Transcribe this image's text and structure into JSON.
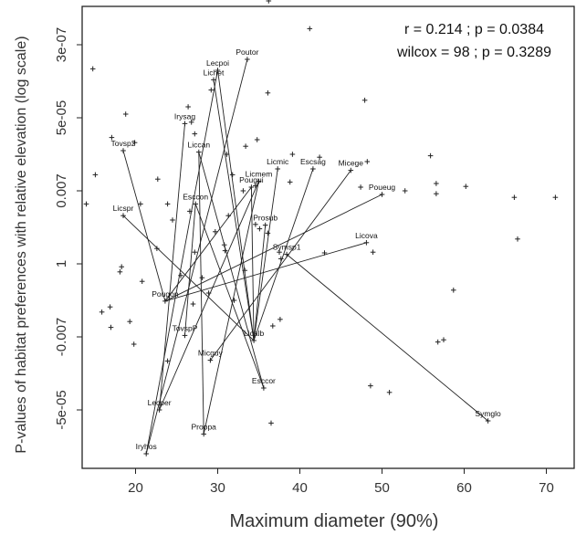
{
  "chart_data": {
    "type": "scatter",
    "xlabel": "Maximum diameter (90%)",
    "ylabel": "P-values of habitat preferences with relative elevation (log scale)",
    "xlim": [
      13.5,
      72
    ],
    "x_ticks": [
      20,
      30,
      40,
      50,
      60,
      70
    ],
    "y_ticks": [
      "3e-07",
      "5e-05",
      "0.007",
      "1",
      "-0.007",
      "-5e-05"
    ],
    "annotations": [
      "r = 0.214 ; p = 0.0384",
      "wilcox = 98 ; p = 0.3289"
    ],
    "points": [
      {
        "x": 36.2,
        "y": 3.6
      },
      {
        "x": 41.2,
        "y": 3.22
      },
      {
        "x": 14.8,
        "y": 2.67
      },
      {
        "x": 29.2,
        "y": 2.38
      },
      {
        "x": 26.4,
        "y": 2.15
      },
      {
        "x": 36.1,
        "y": 2.34
      },
      {
        "x": 47.9,
        "y": 2.24
      },
      {
        "x": 18.8,
        "y": 2.05
      },
      {
        "x": 26.8,
        "y": 1.94
      },
      {
        "x": 27.2,
        "y": 1.78
      },
      {
        "x": 17.1,
        "y": 1.73
      },
      {
        "x": 19.9,
        "y": 1.66
      },
      {
        "x": 34.8,
        "y": 1.7
      },
      {
        "x": 31.1,
        "y": 1.5
      },
      {
        "x": 33.4,
        "y": 1.61
      },
      {
        "x": 39.1,
        "y": 1.5
      },
      {
        "x": 42.4,
        "y": 1.46
      },
      {
        "x": 48.2,
        "y": 1.4
      },
      {
        "x": 55.9,
        "y": 1.48
      },
      {
        "x": 15.1,
        "y": 1.22
      },
      {
        "x": 22.7,
        "y": 1.16
      },
      {
        "x": 31.8,
        "y": 1.22
      },
      {
        "x": 33.1,
        "y": 1.0
      },
      {
        "x": 34.6,
        "y": 1.07
      },
      {
        "x": 38.8,
        "y": 1.12
      },
      {
        "x": 56.6,
        "y": 1.1
      },
      {
        "x": 60.2,
        "y": 1.06
      },
      {
        "x": 47.4,
        "y": 1.05
      },
      {
        "x": 52.8,
        "y": 1.0
      },
      {
        "x": 56.6,
        "y": 0.96
      },
      {
        "x": 66.1,
        "y": 0.91
      },
      {
        "x": 71.1,
        "y": 0.91
      },
      {
        "x": 14.0,
        "y": 0.82
      },
      {
        "x": 20.6,
        "y": 0.82
      },
      {
        "x": 23.9,
        "y": 0.82
      },
      {
        "x": 26.6,
        "y": 0.72
      },
      {
        "x": 31.3,
        "y": 0.66
      },
      {
        "x": 24.5,
        "y": 0.6
      },
      {
        "x": 34.6,
        "y": 0.54
      },
      {
        "x": 35.1,
        "y": 0.48
      },
      {
        "x": 29.7,
        "y": 0.44
      },
      {
        "x": 36.1,
        "y": 0.42
      },
      {
        "x": 30.8,
        "y": 0.26
      },
      {
        "x": 66.5,
        "y": 0.34
      },
      {
        "x": 22.6,
        "y": 0.21
      },
      {
        "x": 27.2,
        "y": 0.16
      },
      {
        "x": 30.9,
        "y": 0.18
      },
      {
        "x": 37.5,
        "y": 0.16
      },
      {
        "x": 43.0,
        "y": 0.15
      },
      {
        "x": 48.9,
        "y": 0.16
      },
      {
        "x": 37.7,
        "y": 0.07
      },
      {
        "x": 18.3,
        "y": -0.04
      },
      {
        "x": 18.1,
        "y": -0.11
      },
      {
        "x": 33.3,
        "y": -0.09
      },
      {
        "x": 25.5,
        "y": -0.16
      },
      {
        "x": 28.1,
        "y": -0.19
      },
      {
        "x": 20.8,
        "y": -0.24
      },
      {
        "x": 28.9,
        "y": -0.4
      },
      {
        "x": 58.7,
        "y": -0.36
      },
      {
        "x": 27.0,
        "y": -0.55
      },
      {
        "x": 32.0,
        "y": -0.5
      },
      {
        "x": 15.9,
        "y": -0.66
      },
      {
        "x": 16.9,
        "y": -0.59
      },
      {
        "x": 19.3,
        "y": -0.79
      },
      {
        "x": 17.0,
        "y": -0.87
      },
      {
        "x": 37.6,
        "y": -0.76
      },
      {
        "x": 36.7,
        "y": -0.85
      },
      {
        "x": 19.8,
        "y": -1.1
      },
      {
        "x": 56.8,
        "y": -1.07
      },
      {
        "x": 57.5,
        "y": -1.04
      },
      {
        "x": 23.9,
        "y": -1.33
      },
      {
        "x": 48.6,
        "y": -1.67
      },
      {
        "x": 50.9,
        "y": -1.76
      },
      {
        "x": 36.5,
        "y": -2.18
      }
    ],
    "labeled_points": [
      {
        "name": "Lecpoi",
        "x": 30.0,
        "y": 2.65
      },
      {
        "name": "Lichet",
        "x": 29.5,
        "y": 2.52
      },
      {
        "name": "Poutor",
        "x": 33.6,
        "y": 2.8
      },
      {
        "name": "Irysag",
        "x": 26.0,
        "y": 1.92
      },
      {
        "name": "Tovsp2",
        "x": 18.5,
        "y": 1.55
      },
      {
        "name": "Liccan",
        "x": 27.7,
        "y": 1.53
      },
      {
        "name": "Licmic",
        "x": 37.3,
        "y": 1.3
      },
      {
        "name": "Escsag",
        "x": 41.6,
        "y": 1.3
      },
      {
        "name": "Micege",
        "x": 46.2,
        "y": 1.28
      },
      {
        "name": "Licmem",
        "x": 35.0,
        "y": 1.13
      },
      {
        "name": "Pougui",
        "x": 34.1,
        "y": 1.05
      },
      {
        "name": "Esccon",
        "x": 27.3,
        "y": 0.82
      },
      {
        "name": "Poueug",
        "x": 50.0,
        "y": 0.95
      },
      {
        "name": "Licspr",
        "x": 18.5,
        "y": 0.66
      },
      {
        "name": "Prosub",
        "x": 35.8,
        "y": 0.53
      },
      {
        "name": "Licova",
        "x": 48.1,
        "y": 0.29
      },
      {
        "name": "Symsp1",
        "x": 38.4,
        "y": 0.13
      },
      {
        "name": "Pougon",
        "x": 23.6,
        "y": -0.51
      },
      {
        "name": "TovspP",
        "x": 26.0,
        "y": -0.98
      },
      {
        "name": "Licalb",
        "x": 34.4,
        "y": -1.05
      },
      {
        "name": "Micguy",
        "x": 29.1,
        "y": -1.32
      },
      {
        "name": "Esccor",
        "x": 35.6,
        "y": -1.7
      },
      {
        "name": "Lecper",
        "x": 22.9,
        "y": -2.0
      },
      {
        "name": "Symglo",
        "x": 62.9,
        "y": -2.15
      },
      {
        "name": "Proopa",
        "x": 28.3,
        "y": -2.33
      },
      {
        "name": "Iryhos",
        "x": 21.3,
        "y": -2.6
      }
    ],
    "segments": [
      [
        "Iryhos",
        "Lecpoi"
      ],
      [
        "Iryhos",
        "Poutor"
      ],
      [
        "Lecper",
        "Irysag"
      ],
      [
        "Lecper",
        "Licmem"
      ],
      [
        "Lichet",
        "Licalb"
      ],
      [
        "Lecpoi",
        "Licalb"
      ],
      [
        "Liccan",
        "Esccor"
      ],
      [
        "Liccan",
        "Proopa"
      ],
      [
        "Esccon",
        "Esccor"
      ],
      [
        "Esccon",
        "TovspP"
      ],
      [
        "Tovsp2",
        "Pougon"
      ],
      [
        "Licspr",
        "Licalb"
      ],
      [
        "Pougon",
        "Pougui"
      ],
      [
        "Pougon",
        "Poueug"
      ],
      [
        "Pougon",
        "Licova"
      ],
      [
        "Licalb",
        "Licmic"
      ],
      [
        "Licalb",
        "Prosub"
      ],
      [
        "Licalb",
        "Escsag"
      ],
      [
        "Licalb",
        "Pougui"
      ],
      [
        "Micguy",
        "Micege"
      ],
      [
        "Proopa",
        "Licmem"
      ],
      [
        "Symglo",
        "Symsp1"
      ]
    ],
    "grid": false,
    "legend": "none"
  }
}
